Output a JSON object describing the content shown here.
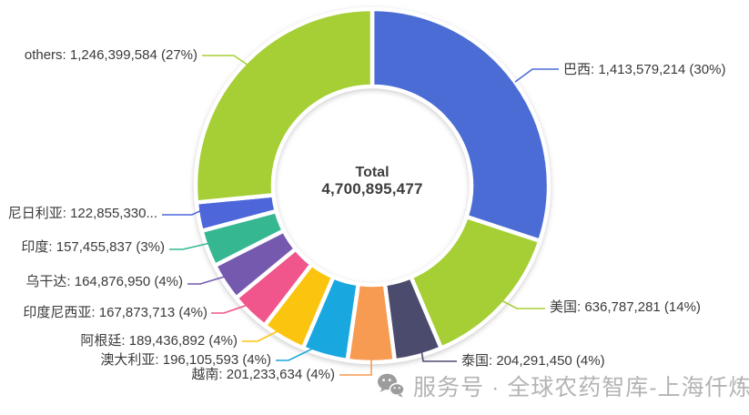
{
  "chart_data": {
    "type": "pie",
    "subtype": "donut",
    "title": "",
    "center": {
      "title": "Total",
      "value": "4,700,895,477"
    },
    "total": 4700895477,
    "legend_position": "callout-labels",
    "items": [
      {
        "id": "brazil",
        "name": "巴西",
        "value": 1413579214,
        "pct": "30%",
        "label": "巴西: 1,413,579,214 (30%)",
        "color": "#4a6cd4"
      },
      {
        "id": "usa",
        "name": "美国",
        "value": 636787281,
        "pct": "14%",
        "label": "美国: 636,787,281 (14%)",
        "color": "#a5cf35"
      },
      {
        "id": "thailand",
        "name": "泰国",
        "value": 204291450,
        "pct": "4%",
        "label": "泰国: 204,291,450 (4%)",
        "color": "#4b4b6e"
      },
      {
        "id": "vietnam",
        "name": "越南",
        "value": 201233634,
        "pct": "4%",
        "label": "越南: 201,233,634 (4%)",
        "color": "#f79a52"
      },
      {
        "id": "australia",
        "name": "澳大利亚",
        "value": 196105593,
        "pct": "4%",
        "label": "澳大利亚: 196,105,593 (4%)",
        "color": "#19a7e0"
      },
      {
        "id": "argentina",
        "name": "阿根廷",
        "value": 189436892,
        "pct": "4%",
        "label": "阿根廷: 189,436,892 (4%)",
        "color": "#fbc40f"
      },
      {
        "id": "indonesia",
        "name": "印度尼西亚",
        "value": 167873713,
        "pct": "4%",
        "label": "印度尼西亚: 167,873,713 (4%)",
        "color": "#f0558b"
      },
      {
        "id": "uganda",
        "name": "乌干达",
        "value": 164876950,
        "pct": "4%",
        "label": "乌干达: 164,876,950 (4%)",
        "color": "#7459ae"
      },
      {
        "id": "india",
        "name": "印度",
        "value": 157455837,
        "pct": "3%",
        "label": "印度: 157,455,837 (3%)",
        "color": "#35b792"
      },
      {
        "id": "nigeria",
        "name": "尼日利亚",
        "value": 122855330,
        "pct": "",
        "label": "尼日利亚: 122,855,330...",
        "color": "#4d66da"
      },
      {
        "id": "others",
        "name": "others",
        "value": 1246399584,
        "pct": "27%",
        "label": "others: 1,246,399,584 (27%)",
        "color": "#a5cf35"
      }
    ]
  },
  "watermark": {
    "icon": "wechat-icon",
    "text": "服务号 · 全球农药智库-上海仟炼"
  }
}
